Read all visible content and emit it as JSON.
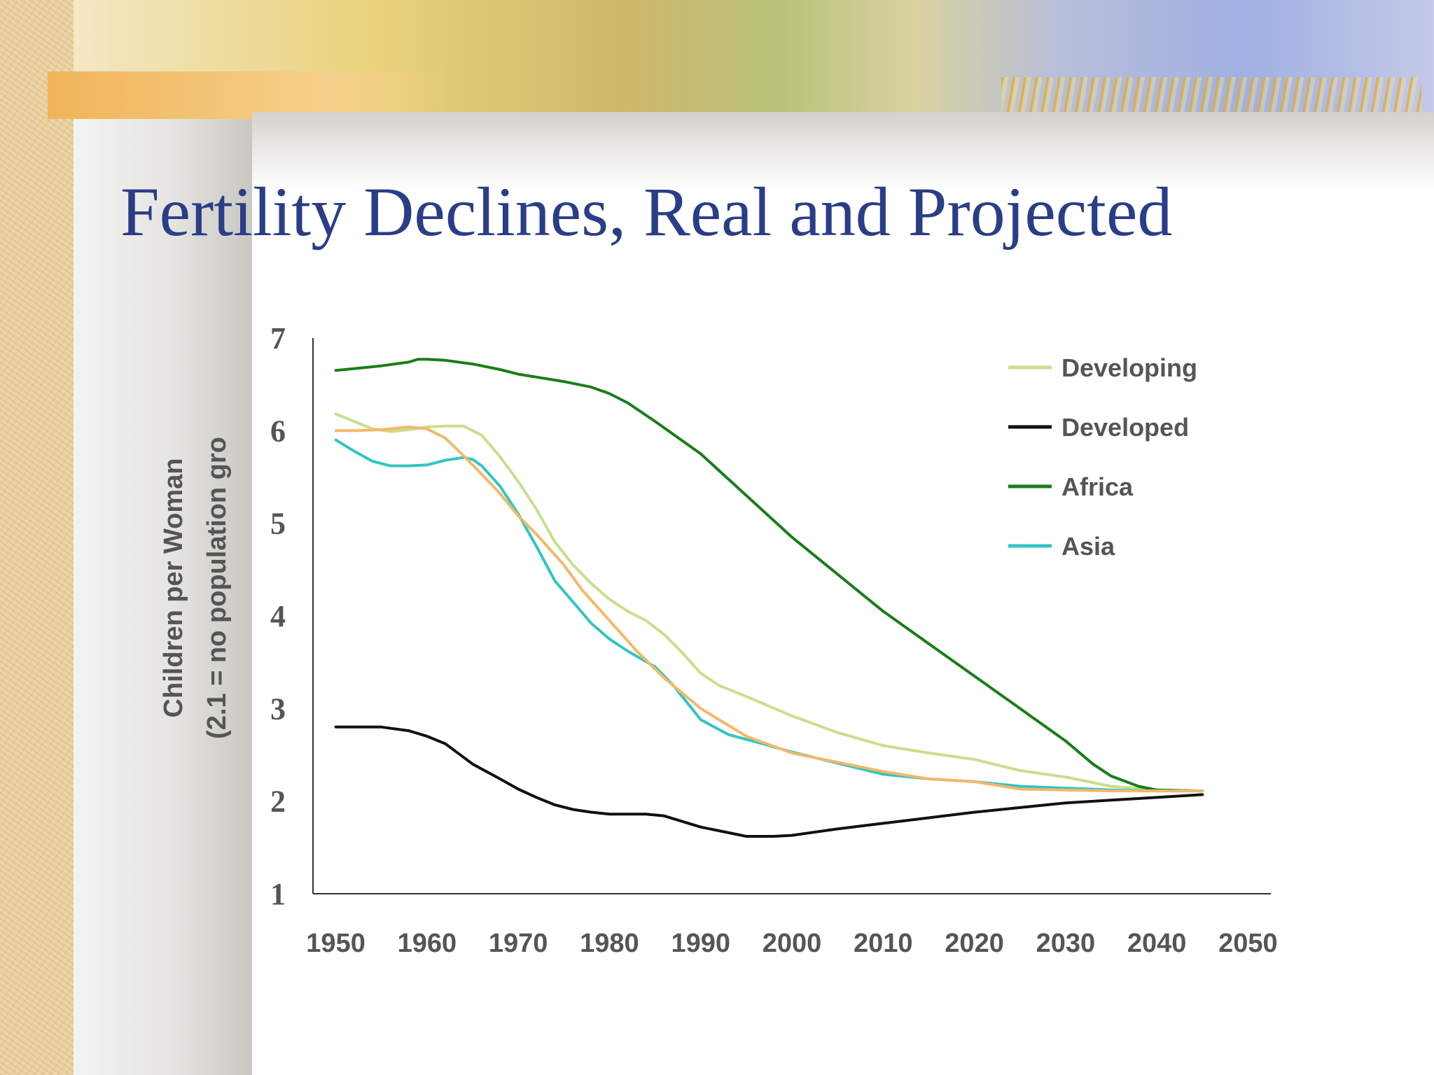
{
  "slide": {
    "title": "Fertility Declines, Real and Projected"
  },
  "chart_data": {
    "type": "line",
    "title": "",
    "ylabel_lines": [
      "Children per Woman",
      "(2.1 = no population gro"
    ],
    "xlabel": "",
    "xlim": [
      1947.5,
      2052.5
    ],
    "ylim": [
      1,
      7
    ],
    "xticks": [
      1950,
      1960,
      1970,
      1980,
      1990,
      2000,
      2010,
      2020,
      2030,
      2040,
      2050
    ],
    "yticks": [
      1,
      2,
      3,
      4,
      5,
      6,
      7
    ],
    "grid": false,
    "legend_position": "top-right",
    "series": [
      {
        "name": "Developing",
        "color": "#c8df8c",
        "x": [
          1950,
          1952,
          1954,
          1956,
          1958,
          1960,
          1962,
          1964,
          1966,
          1968,
          1970,
          1972,
          1974,
          1976,
          1978,
          1980,
          1982,
          1984,
          1986,
          1988,
          1990,
          1992,
          1995,
          2000,
          2005,
          2010,
          2015,
          2020,
          2025,
          2030,
          2035,
          2040,
          2045
        ],
        "y": [
          6.18,
          6.1,
          6.02,
          5.99,
          6.01,
          6.04,
          6.05,
          6.05,
          5.95,
          5.72,
          5.45,
          5.15,
          4.8,
          4.55,
          4.35,
          4.18,
          4.05,
          3.95,
          3.8,
          3.6,
          3.38,
          3.25,
          3.13,
          2.92,
          2.74,
          2.6,
          2.52,
          2.45,
          2.33,
          2.26,
          2.16,
          2.12,
          2.11
        ]
      },
      {
        "name": "Developed",
        "color": "#111111",
        "x": [
          1950,
          1952,
          1955,
          1958,
          1960,
          1962,
          1965,
          1968,
          1970,
          1972,
          1974,
          1976,
          1978,
          1980,
          1982,
          1984,
          1986,
          1988,
          1990,
          1992,
          1995,
          1998,
          2000,
          2005,
          2010,
          2015,
          2020,
          2025,
          2030,
          2035,
          2040,
          2045
        ],
        "y": [
          2.8,
          2.8,
          2.8,
          2.76,
          2.7,
          2.62,
          2.4,
          2.24,
          2.13,
          2.04,
          1.96,
          1.91,
          1.88,
          1.86,
          1.86,
          1.86,
          1.84,
          1.78,
          1.72,
          1.68,
          1.62,
          1.62,
          1.63,
          1.7,
          1.76,
          1.82,
          1.88,
          1.93,
          1.98,
          2.01,
          2.04,
          2.07
        ]
      },
      {
        "name": "Africa",
        "color": "#1a7d1a",
        "x": [
          1950,
          1952,
          1955,
          1958,
          1959,
          1960,
          1962,
          1965,
          1968,
          1970,
          1975,
          1978,
          1980,
          1982,
          1985,
          1990,
          1995,
          2000,
          2005,
          2010,
          2015,
          2020,
          2025,
          2030,
          2033,
          2035,
          2038,
          2040,
          2045
        ],
        "y": [
          6.65,
          6.67,
          6.7,
          6.74,
          6.77,
          6.77,
          6.76,
          6.72,
          6.66,
          6.61,
          6.53,
          6.47,
          6.4,
          6.3,
          6.1,
          5.75,
          5.3,
          4.85,
          4.45,
          4.05,
          3.7,
          3.35,
          3.0,
          2.65,
          2.4,
          2.27,
          2.16,
          2.12,
          2.11
        ]
      },
      {
        "name": "Asia",
        "color": "#33c4c4",
        "x": [
          1950,
          1952,
          1954,
          1956,
          1958,
          1960,
          1962,
          1964,
          1965,
          1966,
          1968,
          1970,
          1972,
          1974,
          1976,
          1978,
          1980,
          1982,
          1985,
          1987,
          1990,
          1993,
          1996,
          2000,
          2005,
          2010,
          2015,
          2020,
          2025,
          2030,
          2035,
          2040,
          2045
        ],
        "y": [
          5.9,
          5.78,
          5.67,
          5.62,
          5.62,
          5.63,
          5.68,
          5.71,
          5.69,
          5.62,
          5.4,
          5.1,
          4.75,
          4.38,
          4.15,
          3.92,
          3.75,
          3.62,
          3.45,
          3.25,
          2.88,
          2.72,
          2.64,
          2.53,
          2.41,
          2.29,
          2.24,
          2.21,
          2.16,
          2.14,
          2.12,
          2.11,
          2.11
        ]
      },
      {
        "name": "",
        "color": "#f2b96a",
        "x": [
          1950,
          1952,
          1955,
          1958,
          1960,
          1962,
          1964,
          1966,
          1968,
          1970,
          1972,
          1975,
          1977,
          1980,
          1983,
          1986,
          1990,
          1995,
          2000,
          2005,
          2010,
          2015,
          2020,
          2025,
          2030,
          2035,
          2040,
          2045
        ],
        "y": [
          6.0,
          6.0,
          6.01,
          6.04,
          6.02,
          5.92,
          5.73,
          5.53,
          5.32,
          5.08,
          4.88,
          4.55,
          4.28,
          3.95,
          3.62,
          3.33,
          3.0,
          2.7,
          2.52,
          2.42,
          2.32,
          2.24,
          2.21,
          2.13,
          2.12,
          2.11,
          2.11,
          2.11
        ]
      }
    ]
  }
}
